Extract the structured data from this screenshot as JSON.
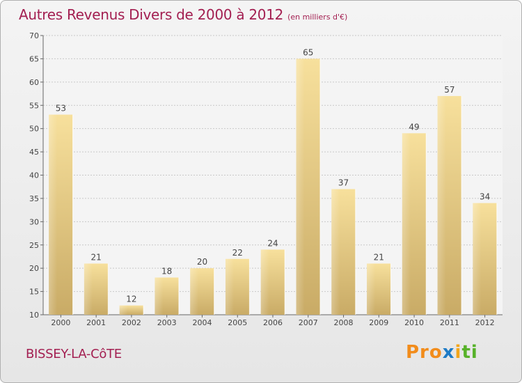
{
  "header": {
    "title": "Autres Revenus Divers de 2000 à 2012",
    "subtitle": "(en milliers d'€)"
  },
  "footer": {
    "commune": "BISSEY-LA-CôTE",
    "logo_parts": [
      "Pro",
      "x",
      "i",
      "ti"
    ]
  },
  "colors": {
    "bar_light": "#f7e09c",
    "bar_dark": "#c9ab66",
    "title": "#a31f51",
    "grid": "#c8c8c8",
    "plot_bg": "#f4f4f4"
  },
  "chart_data": {
    "type": "bar",
    "title": "Autres Revenus Divers de 2000 à 2012",
    "subtitle": "(en milliers d'€)",
    "categories": [
      "2000",
      "2001",
      "2002",
      "2003",
      "2004",
      "2005",
      "2006",
      "2007",
      "2008",
      "2009",
      "2010",
      "2011",
      "2012"
    ],
    "values": [
      53,
      21,
      12,
      18,
      20,
      22,
      24,
      65,
      37,
      21,
      49,
      57,
      34
    ],
    "ylim": [
      10,
      70
    ],
    "yticks": [
      10,
      15,
      20,
      25,
      30,
      35,
      40,
      45,
      50,
      55,
      60,
      65,
      70
    ],
    "grid": true,
    "data_labels": true
  }
}
